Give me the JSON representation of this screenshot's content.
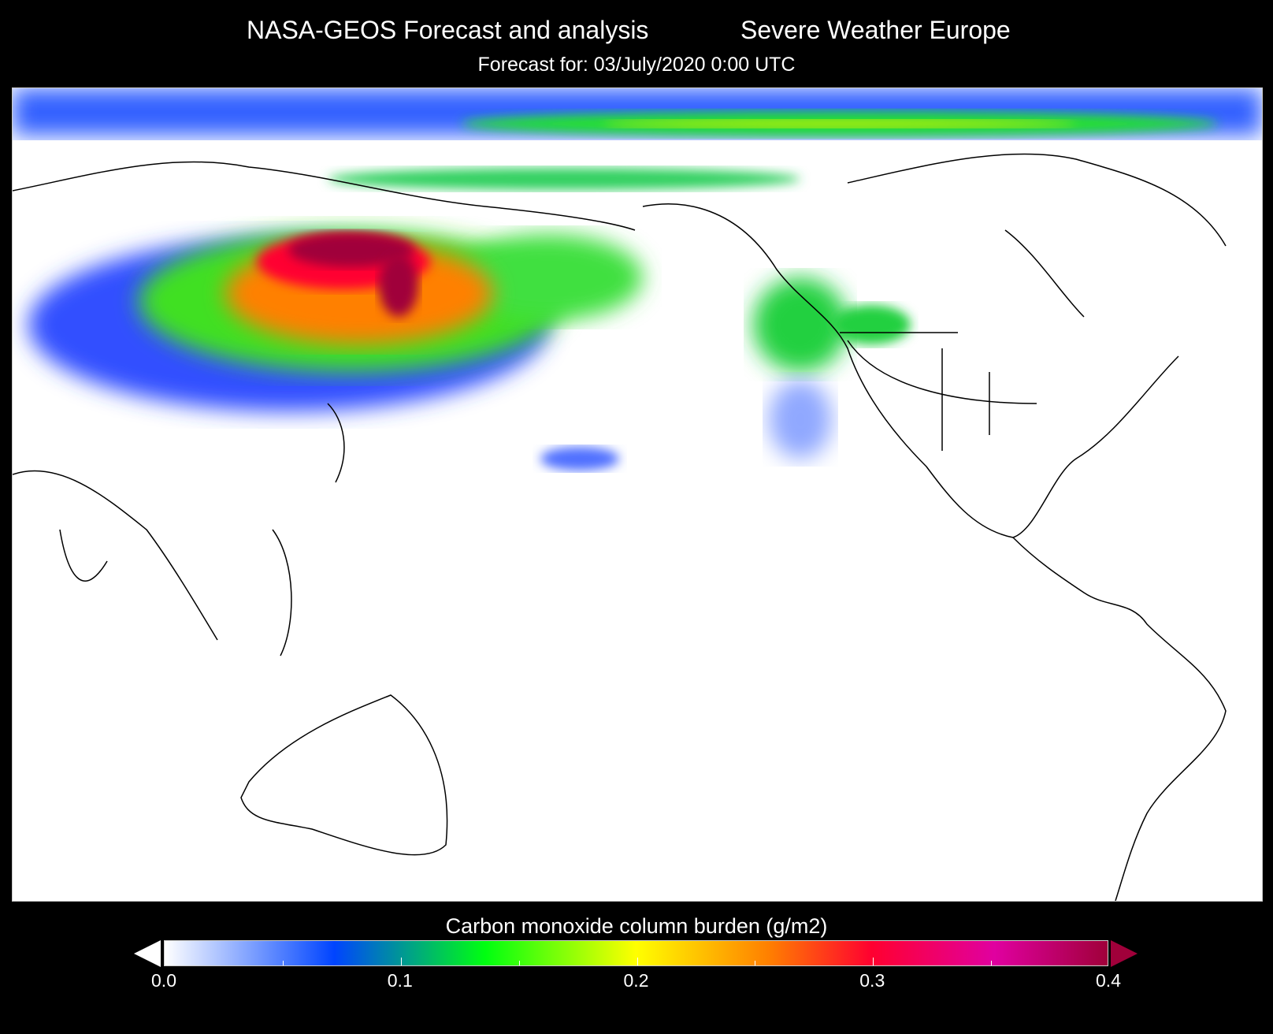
{
  "header": {
    "title_left": "NASA-GEOS Forecast and analysis",
    "title_right": "Severe Weather Europe",
    "subtitle": "Forecast for:  03/July/2020  0:00 UTC"
  },
  "colorbar": {
    "label": "Carbon monoxide column burden (g/m2)",
    "ticks": [
      "0.0",
      "0.1",
      "0.2",
      "0.3",
      "0.4"
    ],
    "min": 0.0,
    "max": 0.4,
    "extend": "both",
    "colors": [
      "#ffffff",
      "#0044ff",
      "#00ff10",
      "#ffff00",
      "#ff8000",
      "#ff0030",
      "#e000a0",
      "#a0003a"
    ]
  }
}
